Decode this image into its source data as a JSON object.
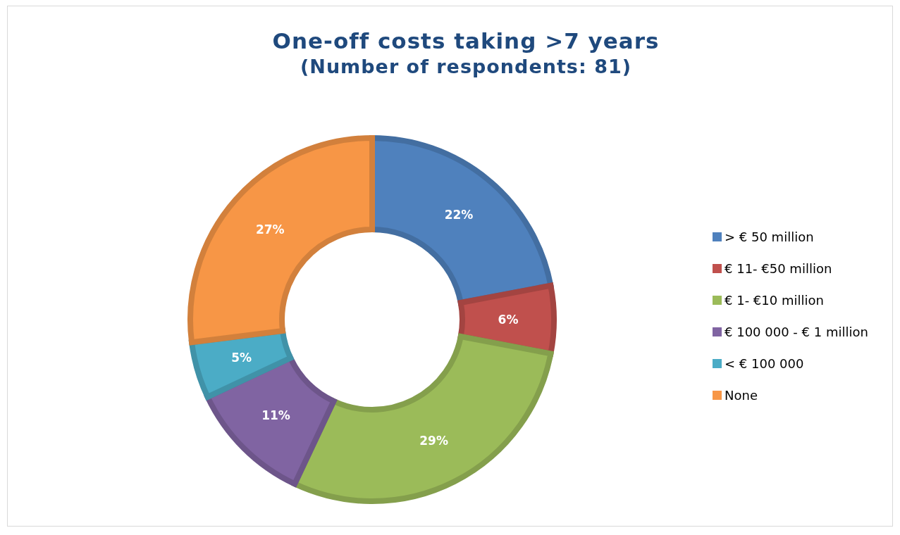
{
  "chart_data": {
    "type": "donut",
    "title": "One-off costs taking >7 years",
    "subtitle": "(Number of respondents: 81)",
    "categories": [
      "> € 50 million",
      "€ 11- €50 million",
      "€ 1- €10 million",
      "€ 100 000 - € 1 million",
      "< € 100 000",
      "None"
    ],
    "values": [
      22,
      6,
      29,
      11,
      5,
      27
    ],
    "value_labels": [
      "22%",
      "6%",
      "29%",
      "11%",
      "5%",
      "27%"
    ],
    "colors": [
      "#4f81bd",
      "#c0504d",
      "#9bbb59",
      "#8064a2",
      "#4bacc6",
      "#f79646"
    ],
    "legend": "right"
  }
}
